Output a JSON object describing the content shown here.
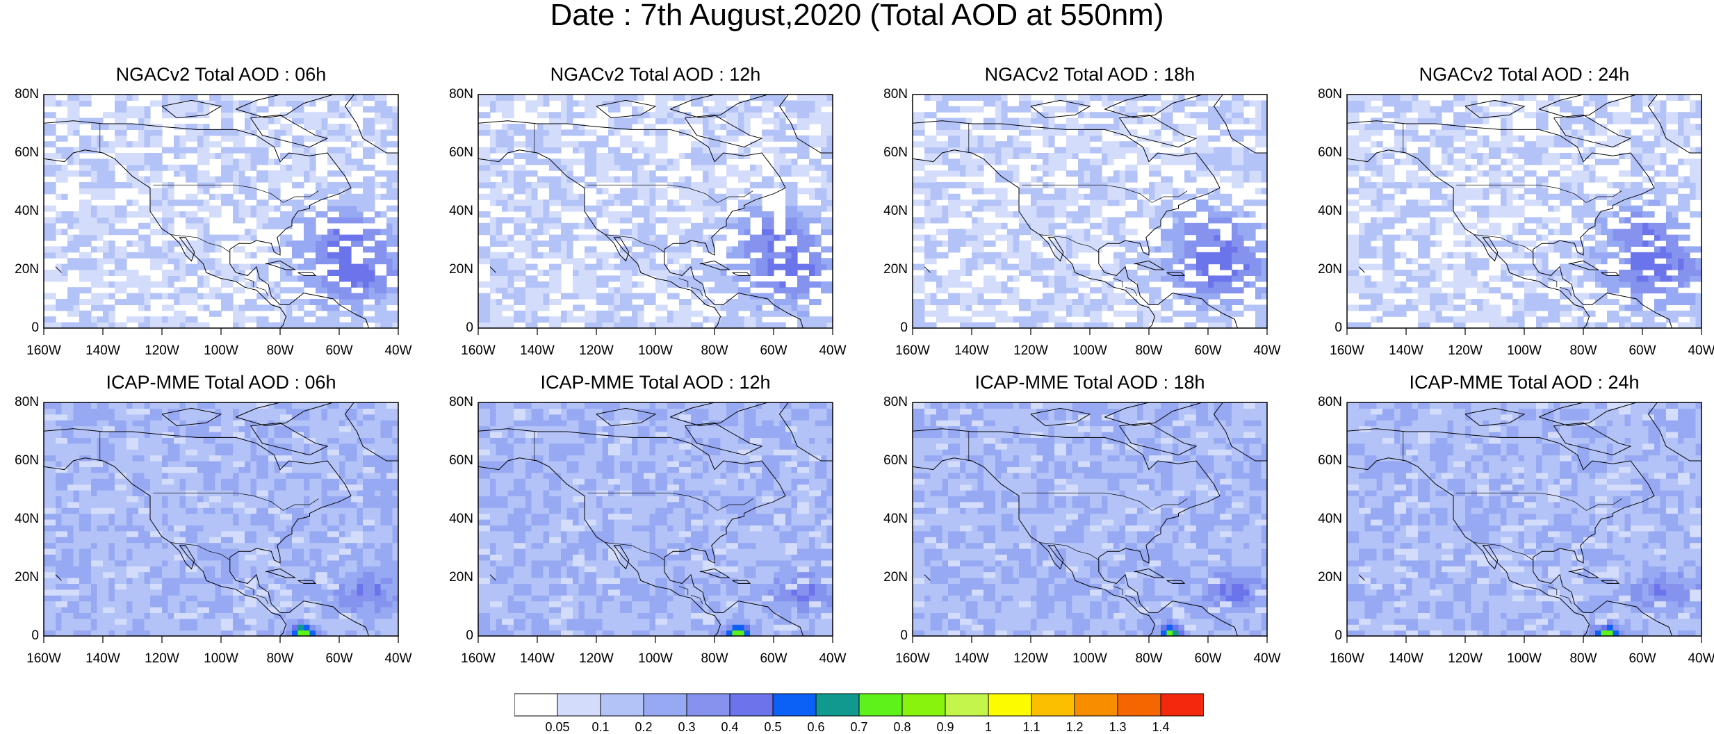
{
  "title": "Date : 7th August,2020 (Total AOD at 550nm)",
  "panels": [
    {
      "title": "NGACv2 Total AOD : 06h",
      "model": "NGACv2",
      "hour": "06h",
      "peak": 0.35
    },
    {
      "title": "NGACv2 Total AOD : 12h",
      "model": "NGACv2",
      "hour": "12h",
      "peak": 0.35
    },
    {
      "title": "NGACv2 Total AOD : 18h",
      "model": "NGACv2",
      "hour": "18h",
      "peak": 0.35
    },
    {
      "title": "NGACv2 Total AOD : 24h",
      "model": "NGACv2",
      "hour": "24h",
      "peak": 0.35
    },
    {
      "title": "ICAP-MME Total AOD : 06h",
      "model": "ICAP-MME",
      "hour": "06h",
      "peak": 0.65
    },
    {
      "title": "ICAP-MME Total AOD : 12h",
      "model": "ICAP-MME",
      "hour": "12h",
      "peak": 0.65
    },
    {
      "title": "ICAP-MME Total AOD : 18h",
      "model": "ICAP-MME",
      "hour": "18h",
      "peak": 0.55
    },
    {
      "title": "ICAP-MME Total AOD : 24h",
      "model": "ICAP-MME",
      "hour": "24h",
      "peak": 0.55
    }
  ],
  "lat_labels": [
    "80N",
    "60N",
    "40N",
    "20N",
    "0"
  ],
  "lon_labels": [
    "160W",
    "140W",
    "120W",
    "100W",
    "80W",
    "60W",
    "40W"
  ],
  "colorbar": {
    "labels": [
      "0.05",
      "0.1",
      "0.2",
      "0.3",
      "0.4",
      "0.5",
      "0.6",
      "0.7",
      "0.8",
      "0.9",
      "1",
      "1.1",
      "1.2",
      "1.3",
      "1.4"
    ],
    "colors": [
      "#ffffff",
      "#d3dcfb",
      "#b4c3f7",
      "#97a9f3",
      "#8593ef",
      "#6b74eb",
      "#0b61f5",
      "#10998f",
      "#5ef11a",
      "#88f30c",
      "#c4f54a",
      "#fdfb00",
      "#fbbf00",
      "#f98d00",
      "#f56600",
      "#f3280c"
    ]
  }
}
